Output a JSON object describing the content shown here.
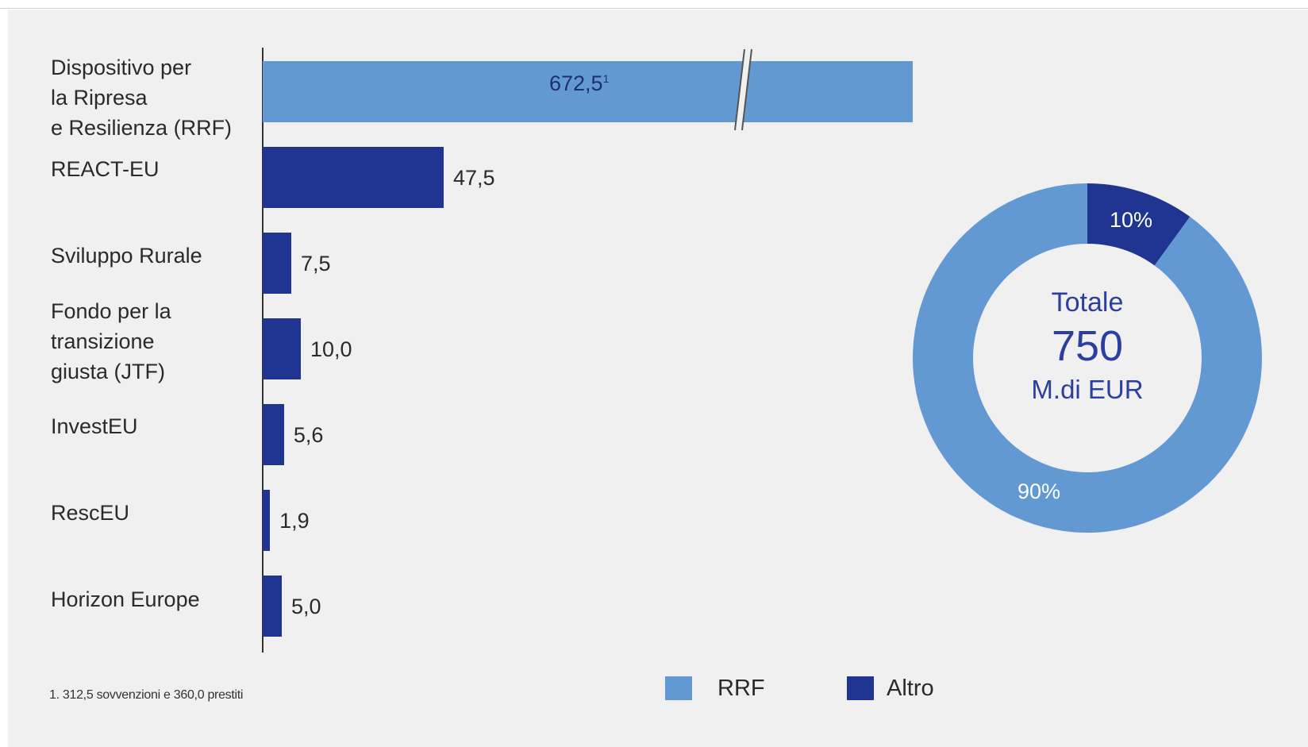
{
  "chart_data": {
    "type": "bar",
    "orientation": "horizontal",
    "categories": [
      "Dispositivo per\nla Ripresa\ne Resilienza (RRF)",
      "REACT-EU",
      "Sviluppo Rurale",
      "Fondo per la\ntransizione\ngiusta (JTF)",
      "InvestEU",
      "RescEU",
      "Horizon Europe"
    ],
    "values": [
      672.5,
      47.5,
      7.5,
      10.0,
      5.6,
      1.9,
      5.0
    ],
    "value_labels": [
      "672,5",
      "47,5",
      "7,5",
      "10,0",
      "5,6",
      "1,9",
      "5,0"
    ],
    "first_value_superscript": "1",
    "axis_break_on_first_bar": true,
    "series_colors": [
      "RRF",
      "Altro",
      "Altro",
      "Altro",
      "Altro",
      "Altro",
      "Altro"
    ],
    "footnote": "1. 312,5 sovvenzioni e 360,0  prestiti",
    "legend": {
      "placement": "bottom",
      "entries": [
        {
          "name": "RRF",
          "color": "#6399d3"
        },
        {
          "name": "Altro",
          "color": "#1f3591"
        }
      ]
    },
    "donut": {
      "type": "pie",
      "center_title": "Totale",
      "center_value": "750",
      "center_unit": "M.di EUR",
      "slices": [
        {
          "name": "Altro",
          "value": 10,
          "label": "10%",
          "color": "#1f3591"
        },
        {
          "name": "RRF",
          "value": 90,
          "label": "90%",
          "color": "#6399d3"
        }
      ]
    }
  }
}
